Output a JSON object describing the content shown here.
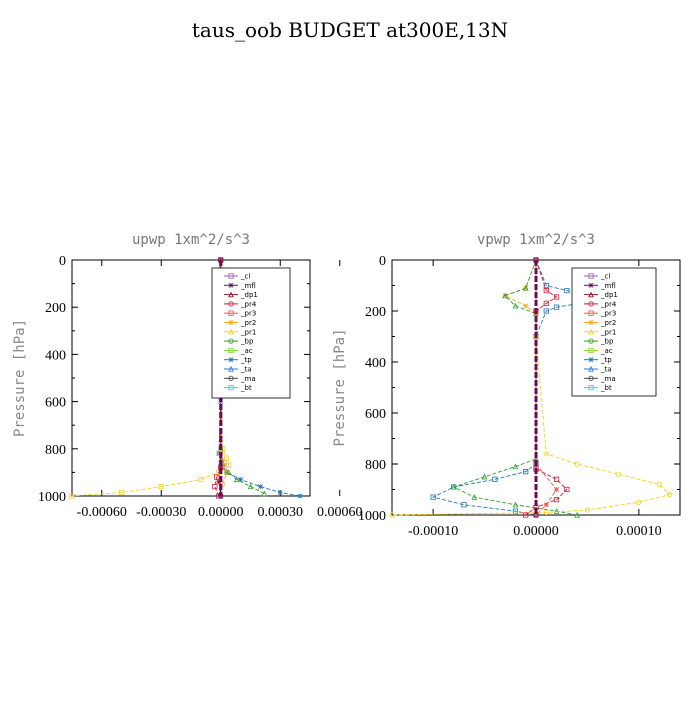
{
  "figure_title": "taus_oob  BUDGET at300E,13N",
  "legend_labels": [
    "_cl",
    "_mfl",
    "_dp1",
    "_pr4",
    "_pr3",
    "_pr2",
    "_pr1",
    "_bp",
    "_ac",
    "_tp",
    "_ta",
    "_ma",
    "_bt"
  ],
  "colors": {
    "_cl": "#9b59b6",
    "_mfl": "#6a0d4f",
    "_dp1": "#8b1a1a",
    "_pr4": "#e0143c",
    "_pr3": "#ff4d4d",
    "_pr2": "#f5a623",
    "_pr1": "#f2d21b",
    "_bp": "#2ca02c",
    "_ac": "#7ddc1f",
    "_tp": "#1f77b4",
    "_ta": "#3a7bd5",
    "_ma": "#444444",
    "_bt": "#22d3ee"
  },
  "chart_data": [
    {
      "type": "line",
      "title": "upwp   1xm^2/s^3",
      "ylabel": "Pressure [hPa]",
      "xlabel": "",
      "ylim": [
        1000,
        0
      ],
      "xlim": [
        -0.00075,
        0.00045
      ],
      "xticks": [
        -0.0006,
        -0.0003,
        0.0,
        0.0003,
        0.0006
      ],
      "xtick_labels": [
        "-0.00060",
        "-0.00030",
        "0.00000",
        "0.00030",
        "0.00060"
      ],
      "yticks": [
        0,
        200,
        400,
        600,
        800,
        1000
      ],
      "ytick_labels": [
        "0",
        "200",
        "400",
        "600",
        "800",
        "1000"
      ],
      "legend_position": "top-right",
      "series": [
        {
          "name": "_pr1",
          "x": [
            0,
            0,
            1e-05,
            3e-05,
            4e-05,
            -1e-05,
            -0.0001,
            -0.0003,
            -0.0005,
            -0.00075
          ],
          "y": [
            0,
            500,
            800,
            840,
            870,
            900,
            930,
            960,
            985,
            1000
          ]
        },
        {
          "name": "_tp",
          "x": [
            0,
            -2e-05,
            0,
            0,
            -1e-05,
            0,
            3e-05,
            0.0001,
            0.0002,
            0.0003,
            0.0004
          ],
          "y": [
            0,
            130,
            200,
            600,
            820,
            860,
            900,
            930,
            960,
            985,
            1000
          ]
        },
        {
          "name": "_bp",
          "x": [
            0,
            0,
            1e-05,
            4e-05,
            8e-05,
            0.00015,
            0.00022
          ],
          "y": [
            0,
            800,
            860,
            900,
            930,
            960,
            990
          ]
        },
        {
          "name": "_pr2",
          "x": [
            0,
            0,
            2e-05,
            3e-05,
            1e-05
          ],
          "y": [
            0,
            820,
            860,
            900,
            950
          ]
        },
        {
          "name": "_pr4",
          "x": [
            0,
            0,
            -2e-05,
            -3e-05,
            -1e-05
          ],
          "y": [
            0,
            880,
            920,
            960,
            1000
          ]
        },
        {
          "name": "_dp1",
          "x": [
            0,
            0,
            -1e-05,
            0
          ],
          "y": [
            0,
            880,
            940,
            1000
          ]
        },
        {
          "name": "_cl",
          "x": [
            0,
            0
          ],
          "y": [
            0,
            1000
          ]
        },
        {
          "name": "_mfl",
          "x": [
            0,
            0
          ],
          "y": [
            0,
            1000
          ]
        }
      ]
    },
    {
      "type": "line",
      "title": "vpwp   1xm^2/s^3",
      "ylabel": "Pressure [hPa]",
      "xlabel": "",
      "ylim": [
        1000,
        0
      ],
      "xlim": [
        -0.00014,
        0.00014
      ],
      "xticks": [
        -0.0001,
        0.0,
        0.0001
      ],
      "xtick_labels": [
        "-0.00010",
        "0.00000",
        "0.00010"
      ],
      "yticks": [
        0,
        200,
        400,
        600,
        800,
        1000
      ],
      "ytick_labels": [
        "0",
        "200",
        "400",
        "600",
        "800",
        "1000"
      ],
      "legend_position": "top-right",
      "series": [
        {
          "name": "_tp",
          "x": [
            0,
            1e-05,
            3e-05,
            6e-05,
            5e-05,
            2e-05,
            1e-05,
            0,
            0,
            -1e-05,
            -4e-05,
            -8e-05,
            -0.0001,
            -7e-05,
            -2e-05,
            0
          ],
          "y": [
            0,
            100,
            120,
            140,
            165,
            185,
            200,
            300,
            800,
            830,
            860,
            890,
            930,
            960,
            985,
            1000
          ]
        },
        {
          "name": "_pr2",
          "x": [
            0,
            -1e-05,
            -3e-05,
            -1e-05,
            0,
            0
          ],
          "y": [
            0,
            110,
            140,
            180,
            210,
            1000
          ]
        },
        {
          "name": "_bp",
          "x": [
            0,
            -1e-05,
            -3e-05,
            -2e-05,
            0,
            0,
            -2e-05,
            -5e-05,
            -8e-05,
            -6e-05,
            -2e-05,
            2e-05,
            4e-05
          ],
          "y": [
            0,
            110,
            140,
            180,
            210,
            780,
            810,
            850,
            890,
            930,
            960,
            985,
            1000
          ]
        },
        {
          "name": "_pr1",
          "x": [
            0,
            0,
            1e-05,
            4e-05,
            8e-05,
            0.00012,
            0.00013,
            0.0001,
            5e-05,
            1e-05,
            -0.00014
          ],
          "y": [
            0,
            300,
            760,
            800,
            840,
            880,
            920,
            950,
            980,
            990,
            1000
          ]
        },
        {
          "name": "_pr4",
          "x": [
            0,
            1e-05,
            2e-05,
            1e-05,
            0,
            0,
            2e-05,
            3e-05,
            2e-05,
            0,
            -1e-05
          ],
          "y": [
            0,
            120,
            145,
            170,
            200,
            820,
            860,
            900,
            940,
            970,
            1000
          ]
        },
        {
          "name": "_pr3",
          "x": [
            0,
            0,
            2e-05,
            1e-05,
            0
          ],
          "y": [
            0,
            800,
            900,
            960,
            1000
          ]
        },
        {
          "name": "_cl",
          "x": [
            0,
            0
          ],
          "y": [
            0,
            1000
          ]
        },
        {
          "name": "_mfl",
          "x": [
            0,
            0
          ],
          "y": [
            0,
            1000
          ]
        }
      ]
    }
  ]
}
